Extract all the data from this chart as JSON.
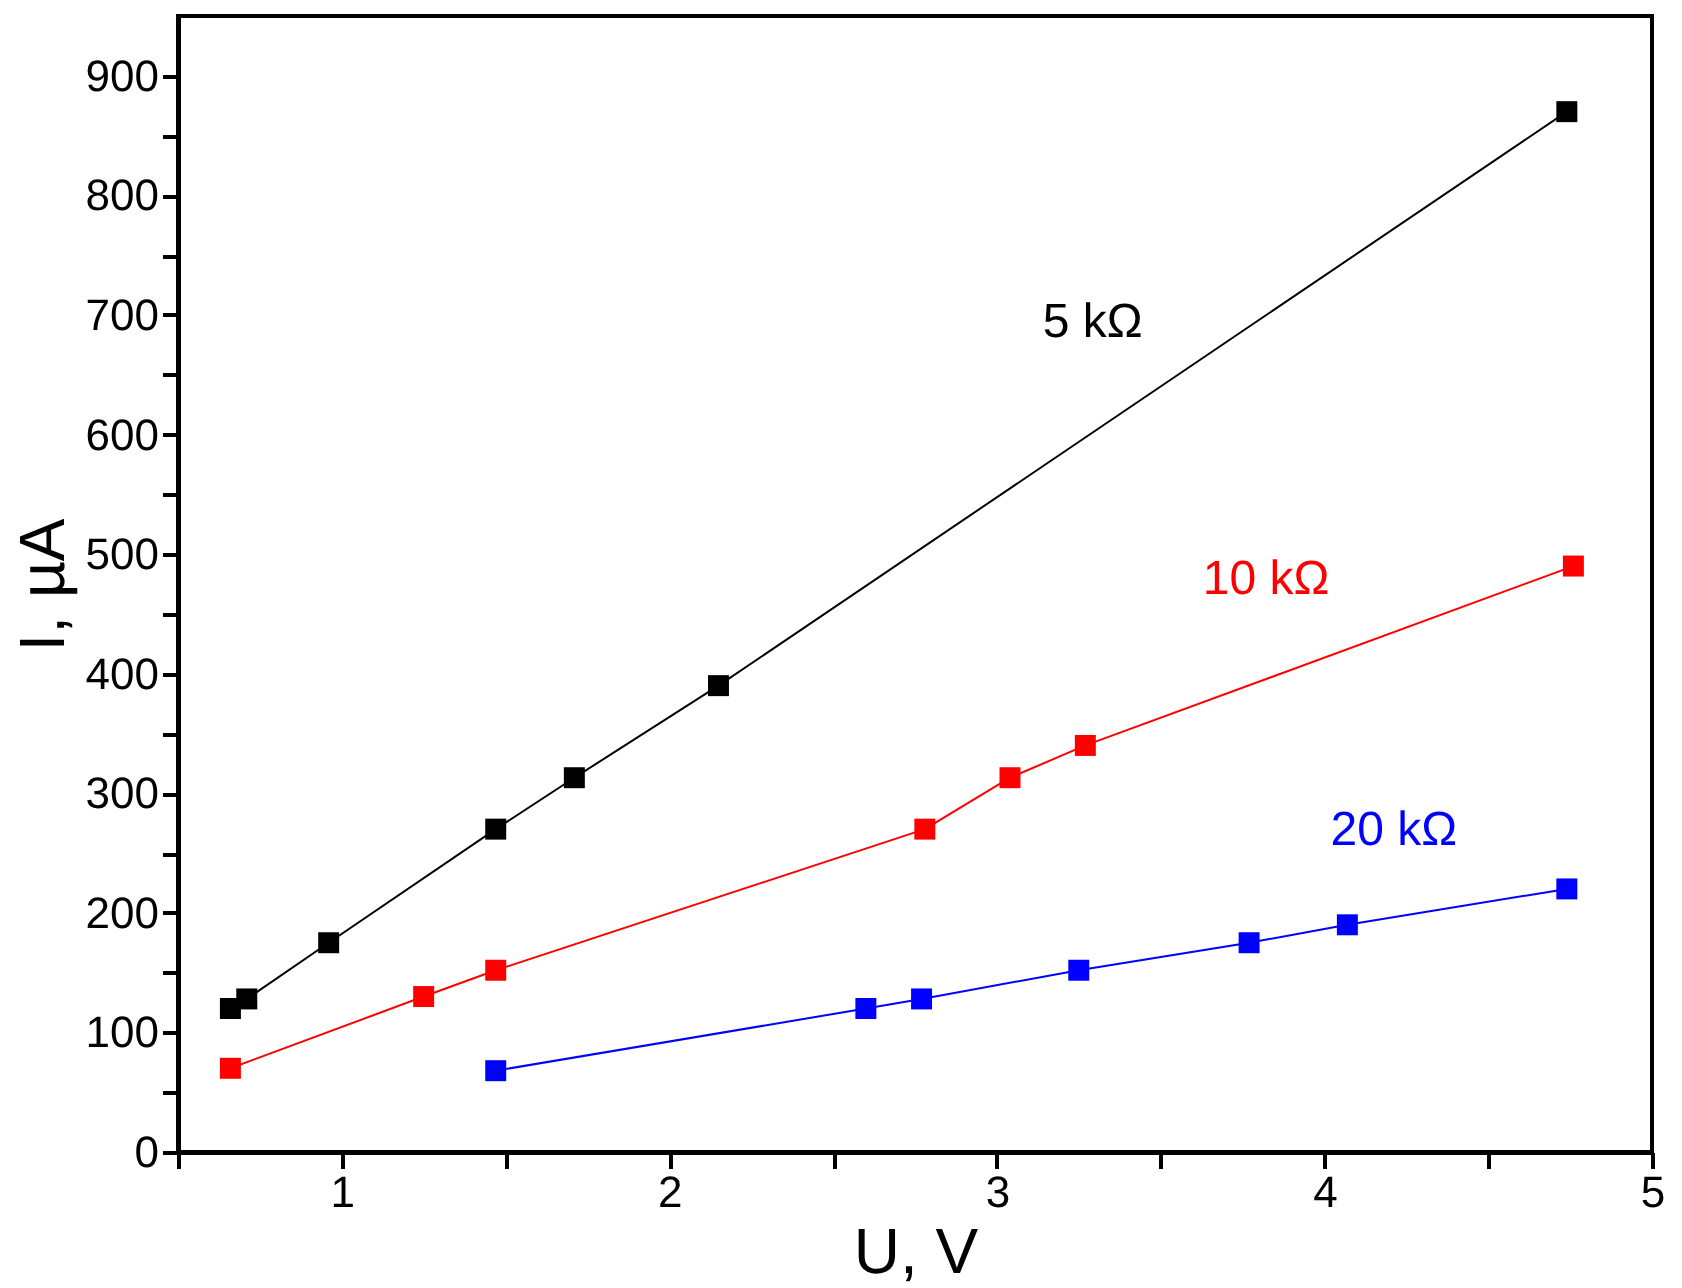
{
  "chart_data": {
    "type": "line",
    "xlabel": "U, V",
    "ylabel": "I, µA",
    "xlim": [
      0.5,
      5
    ],
    "ylim": [
      0,
      950
    ],
    "xticks": [
      {
        "value": 0.5,
        "label": null
      },
      1,
      {
        "value": 1.5,
        "label": null
      },
      2,
      {
        "value": 2.5,
        "label": null
      },
      3,
      {
        "value": 3.5,
        "label": null
      },
      4,
      {
        "value": 4.5,
        "label": null
      },
      5
    ],
    "yticks": [
      0,
      {
        "value": 50,
        "label": null
      },
      100,
      {
        "value": 150,
        "label": null
      },
      200,
      {
        "value": 250,
        "label": null
      },
      300,
      {
        "value": 350,
        "label": null
      },
      400,
      {
        "value": 450,
        "label": null
      },
      500,
      {
        "value": 550,
        "label": null
      },
      600,
      {
        "value": 650,
        "label": null
      },
      700,
      {
        "value": 750,
        "label": null
      },
      800,
      {
        "value": 850,
        "label": null
      },
      900
    ],
    "marker": "square",
    "legend": false,
    "grid": false,
    "series": [
      {
        "name": "5 kΩ",
        "color": "#000000",
        "x": [
          0.66,
          0.71,
          0.96,
          1.47,
          1.71,
          2.15,
          4.74
        ],
        "values": [
          120,
          128,
          175,
          270,
          313,
          390,
          870
        ]
      },
      {
        "name": "10 kΩ",
        "color": "#ff0000",
        "x": [
          0.66,
          1.25,
          1.47,
          2.78,
          3.04,
          3.27,
          4.76
        ],
        "values": [
          70,
          130,
          152,
          270,
          313,
          340,
          490
        ]
      },
      {
        "name": "20 kΩ",
        "color": "#0000ff",
        "x": [
          1.47,
          2.6,
          2.77,
          3.25,
          3.77,
          4.07,
          4.74
        ],
        "values": [
          68,
          120,
          128,
          152,
          175,
          190,
          220
        ]
      }
    ]
  }
}
